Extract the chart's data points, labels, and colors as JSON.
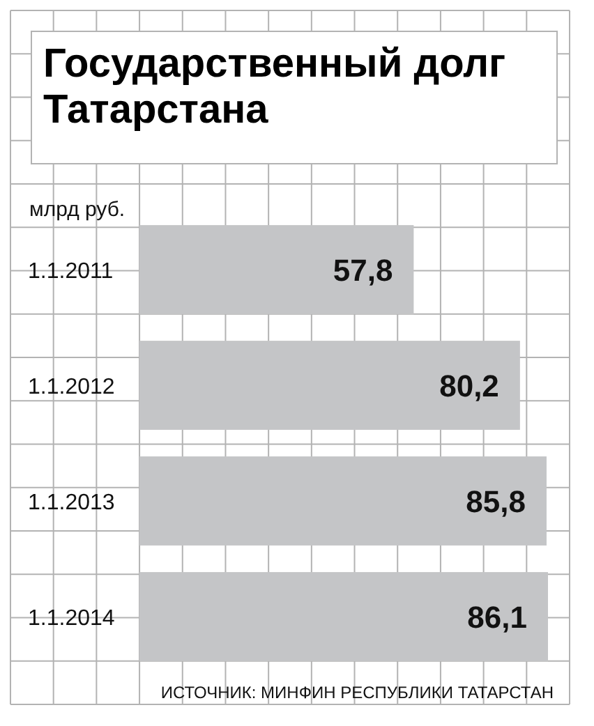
{
  "chart_data": {
    "type": "bar",
    "orientation": "horizontal",
    "title": "Государственный долг Татарстана",
    "xlabel": "млрд руб.",
    "categories": [
      "1.1.2011",
      "1.1.2012",
      "1.1.2013",
      "1.1.2014"
    ],
    "values": [
      57.8,
      80.2,
      85.8,
      86.1
    ],
    "color": "#c4c5c7",
    "value_labels": [
      "57,8",
      "80,2",
      "85,8",
      "86,1"
    ],
    "grid": true,
    "annotations": [
      "ИСТОЧНИК: МИНФИН РЕСПУБЛИКИ ТАТАРСТАН"
    ]
  }
}
